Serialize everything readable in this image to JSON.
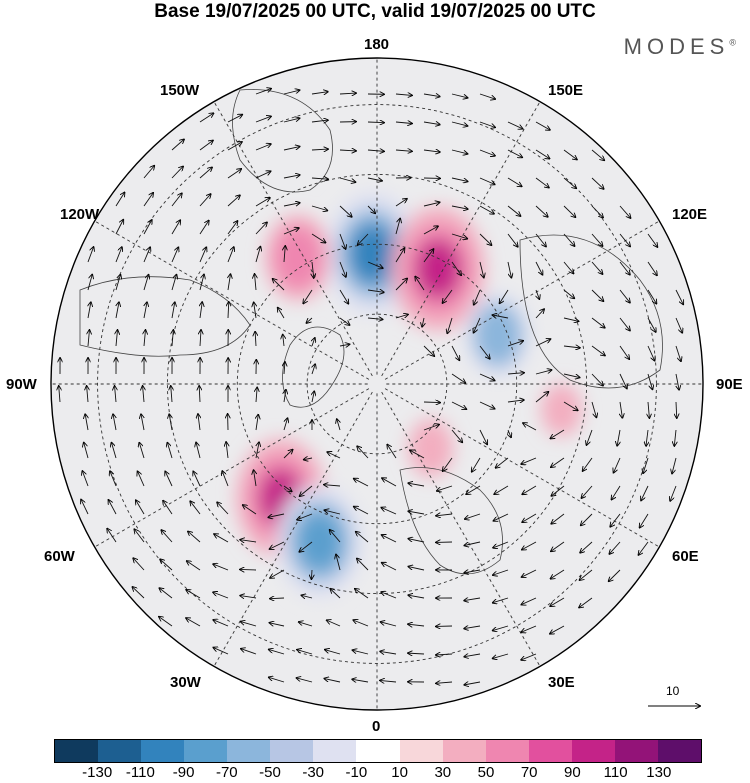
{
  "title": "Base 19/07/2025 00 UTC, valid 19/07/2025 00 UTC",
  "brand": "MODES",
  "brand_mark": "®",
  "meridian_labels": {
    "n180": "180",
    "w150": "150W",
    "e150": "150E",
    "w120": "120W",
    "e120": "120E",
    "w90": "90W",
    "e90": "90E",
    "w60": "60W",
    "e60": "60E",
    "w30": "30W",
    "e30": "30E",
    "s0": "0"
  },
  "vector_scale": {
    "label": "10",
    "arrow_icon": "arrow-right-icon"
  },
  "colorbar": {
    "colors": [
      "#0f3a5e",
      "#1d5f91",
      "#3283bd",
      "#5a9fce",
      "#8cb6dc",
      "#b7c6e4",
      "#dfe1f1",
      "#ffffff",
      "#f8d7da",
      "#f3aec0",
      "#ef86b0",
      "#e2509e",
      "#c42388",
      "#931378",
      "#5e0e6a"
    ],
    "tick_labels": [
      "-130",
      "-110",
      "-90",
      "-70",
      "-50",
      "-30",
      "-10",
      "10",
      "30",
      "50",
      "70",
      "90",
      "110",
      "130"
    ]
  },
  "field_anomalies": [
    {
      "name": "negative-center-pacific",
      "lon": -178,
      "lat": 62,
      "value": -95
    },
    {
      "name": "positive-center-siberia-east",
      "lon": 152,
      "lat": 62,
      "value": 95
    },
    {
      "name": "positive-center-alaska",
      "lon": -148,
      "lat": 58,
      "value": 60
    },
    {
      "name": "negative-center-siberia-central",
      "lon": 112,
      "lat": 62,
      "value": -60
    },
    {
      "name": "positive-center-greenland-sea",
      "lon": -40,
      "lat": 58,
      "value": 90
    },
    {
      "name": "negative-center-north-atlantic",
      "lon": -20,
      "lat": 54,
      "value": -85
    },
    {
      "name": "positive-center-barents",
      "lon": 40,
      "lat": 72,
      "value": 35
    },
    {
      "name": "positive-center-west-siberia",
      "lon": 82,
      "lat": 50,
      "value": 30
    }
  ]
}
